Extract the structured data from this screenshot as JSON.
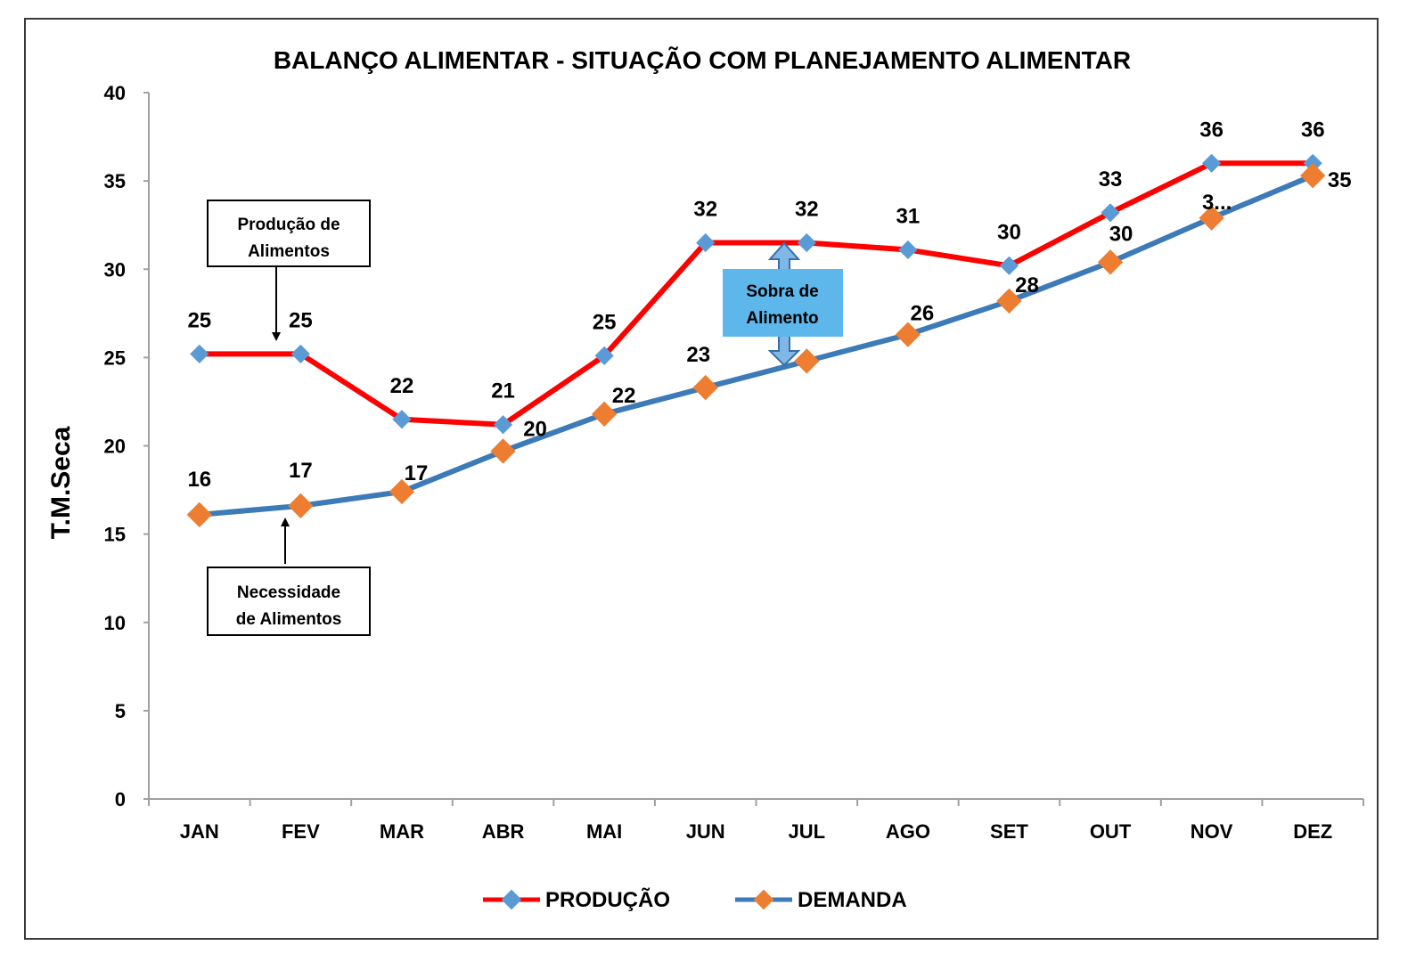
{
  "chart_data": {
    "type": "line",
    "title": "BALANÇO ALIMENTAR - SITUAÇÃO COM PLANEJAMENTO ALIMENTAR",
    "xlabel": "",
    "ylabel": "T.M.Seca",
    "ylim": [
      0,
      40
    ],
    "yticks": [
      0,
      5,
      10,
      15,
      20,
      25,
      30,
      35,
      40
    ],
    "categories": [
      "JAN",
      "FEV",
      "MAR",
      "ABR",
      "MAI",
      "JUN",
      "JUL",
      "AGO",
      "SET",
      "OUT",
      "NOV",
      "DEZ"
    ],
    "grid": false,
    "legend_position": "bottom",
    "series": [
      {
        "name": "PRODUÇÃO",
        "line_color": "#ff0000",
        "marker_color": "#5b9bd5",
        "values": [
          25.2,
          25.2,
          21.5,
          21.2,
          25.1,
          31.5,
          31.5,
          31.1,
          30.2,
          33.2,
          36.0,
          36.0
        ],
        "labels": [
          "25",
          "25",
          "22",
          "21",
          "25",
          "32",
          "32",
          "31",
          "30",
          "33",
          "36",
          "36"
        ]
      },
      {
        "name": "DEMANDA",
        "line_color": "#3d7ab8",
        "marker_color": "#ed7d31",
        "values": [
          16.1,
          16.6,
          17.4,
          19.7,
          21.8,
          23.3,
          24.8,
          26.3,
          28.2,
          30.4,
          32.9,
          35.3
        ],
        "labels": [
          "16",
          "17",
          "17",
          "20",
          "22",
          "23",
          "",
          "26",
          "28",
          "30",
          "3...",
          "35"
        ]
      }
    ],
    "annotations": {
      "producao_box": [
        "Produção de",
        "Alimentos"
      ],
      "necessidade_box": [
        "Necessidade",
        "de Alimentos"
      ],
      "sobra_box": [
        "Sobra de",
        "Alimento"
      ]
    }
  }
}
